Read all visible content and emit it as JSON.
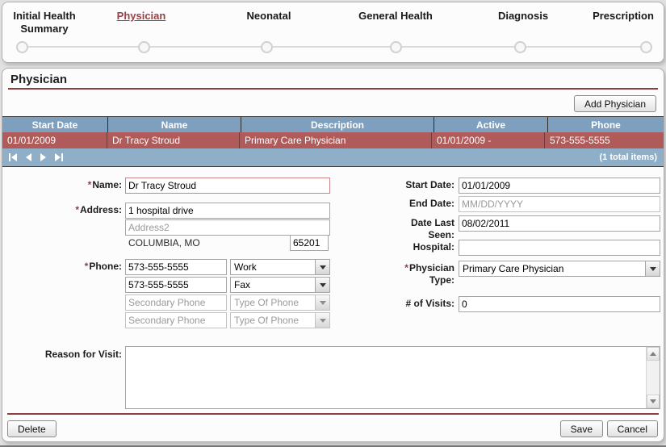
{
  "colors": {
    "accent_maroon": "#8e3e41",
    "active_step": "#9a4147",
    "grid_header_blue": "#7f9fbe",
    "grid_row_red": "#b05a5a",
    "grid_pager_blue": "#8fafc9",
    "page_background": "#e1e1e1"
  },
  "stepper": {
    "steps": [
      {
        "label": "Initial Health Summary",
        "active": false
      },
      {
        "label": "Physician",
        "active": true
      },
      {
        "label": "Neonatal",
        "active": false
      },
      {
        "label": "General Health",
        "active": false
      },
      {
        "label": "Diagnosis",
        "active": false
      },
      {
        "label": "Prescription",
        "active": false
      }
    ]
  },
  "page": {
    "title": "Physician"
  },
  "toolbar": {
    "add_physician_label": "Add Physician"
  },
  "grid": {
    "columns": [
      "Start Date",
      "Name",
      "Description",
      "Active",
      "Phone"
    ],
    "row": {
      "start_date": "01/01/2009",
      "name": "Dr Tracy Stroud",
      "description": "Primary Care Physician",
      "active": "01/01/2009 -",
      "phone": "573-555-5555"
    },
    "pager_total": "(1 total items)"
  },
  "form": {
    "required_marker": "*",
    "name": {
      "label": "Name:",
      "value": "Dr Tracy Stroud"
    },
    "address": {
      "label": "Address:",
      "line1": "1 hospital drive",
      "line2_placeholder": "Address2",
      "city_state": "COLUMBIA, MO",
      "zip": "65201"
    },
    "phone": {
      "label": "Phone:",
      "row1": {
        "value": "573-555-5555",
        "type": "Work"
      },
      "row2": {
        "value": "573-555-5555",
        "type": "Fax"
      },
      "row3": {
        "placeholder": "Secondary Phone",
        "type_placeholder": "Type Of Phone"
      },
      "row4": {
        "placeholder": "Secondary Phone",
        "type_placeholder": "Type Of Phone"
      }
    },
    "start_date": {
      "label": "Start Date:",
      "value": "01/01/2009"
    },
    "end_date": {
      "label": "End Date:",
      "placeholder": "MM/DD/YYYY"
    },
    "date_last_seen": {
      "label": "Date Last Seen:",
      "value": "08/02/2011"
    },
    "hospital": {
      "label": "Hospital:",
      "value": ""
    },
    "physician_type": {
      "label": "Physician Type:",
      "value": "Primary Care Physician"
    },
    "visits": {
      "label": "# of Visits:",
      "value": "0"
    },
    "reason": {
      "label": "Reason for Visit:",
      "value": ""
    }
  },
  "footer": {
    "delete_label": "Delete",
    "save_label": "Save",
    "cancel_label": "Cancel"
  }
}
